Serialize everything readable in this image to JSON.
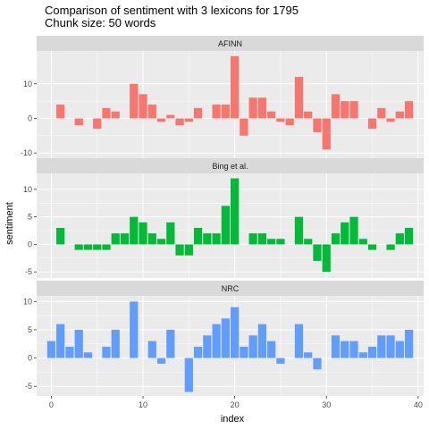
{
  "chart_data": {
    "type": "bar",
    "title": "Comparison of sentiment with 3 lexicons for 1795",
    "subtitle": "Chunk size: 50 words",
    "xlabel": "index",
    "ylabel": "sentiment",
    "x": [
      0,
      1,
      2,
      3,
      4,
      5,
      6,
      7,
      8,
      9,
      10,
      11,
      12,
      13,
      14,
      15,
      16,
      17,
      18,
      19,
      20,
      21,
      22,
      23,
      24,
      25,
      26,
      27,
      28,
      29,
      30,
      31,
      32,
      33,
      34,
      35,
      36,
      37,
      38,
      39
    ],
    "xticks": [
      0,
      10,
      20,
      30,
      40
    ],
    "xlim": [
      -1.6,
      40.6
    ],
    "facet_scales": "free_y",
    "panels": [
      {
        "name": "AFINN",
        "color": "#F8766D",
        "ylim": [
          -11.5,
          19.5
        ],
        "yticks": [
          -10,
          0,
          10
        ],
        "values": [
          0,
          4,
          0,
          -2,
          0,
          -3,
          3,
          2,
          0,
          10,
          7,
          4,
          -1,
          1,
          -2,
          -1,
          3,
          0,
          4,
          4,
          18,
          -5,
          6,
          6,
          2,
          -1,
          -2,
          12,
          2,
          -4,
          -9,
          7,
          5,
          5,
          0,
          -3,
          3,
          -1,
          2,
          5
        ]
      },
      {
        "name": "Bing et al.",
        "color": "#00BA38",
        "ylim": [
          -6.1,
          12.9
        ],
        "yticks": [
          -5,
          0,
          5,
          10
        ],
        "values": [
          0,
          3,
          0,
          -1,
          -1,
          -1,
          -1,
          2,
          2,
          5,
          4,
          2,
          1,
          4,
          -2,
          -2,
          3,
          2,
          2,
          7,
          12,
          0,
          2,
          2,
          1,
          1,
          0,
          5,
          1,
          -3,
          -5,
          2,
          4,
          5,
          1,
          -1,
          0,
          -1,
          2,
          3
        ]
      },
      {
        "name": "NRC",
        "color": "#619CFF",
        "ylim": [
          -6.7,
          11.0
        ],
        "yticks": [
          -5,
          0,
          5,
          10
        ],
        "values": [
          3,
          6,
          2,
          5,
          1,
          0,
          2,
          5,
          0,
          10,
          0,
          3,
          -1,
          5,
          0,
          -6,
          2,
          4,
          6,
          7,
          9,
          2,
          4,
          6,
          3,
          -1,
          0,
          6,
          1,
          -2,
          0,
          4,
          3,
          3,
          1,
          2,
          4,
          4,
          3,
          5
        ]
      }
    ]
  }
}
